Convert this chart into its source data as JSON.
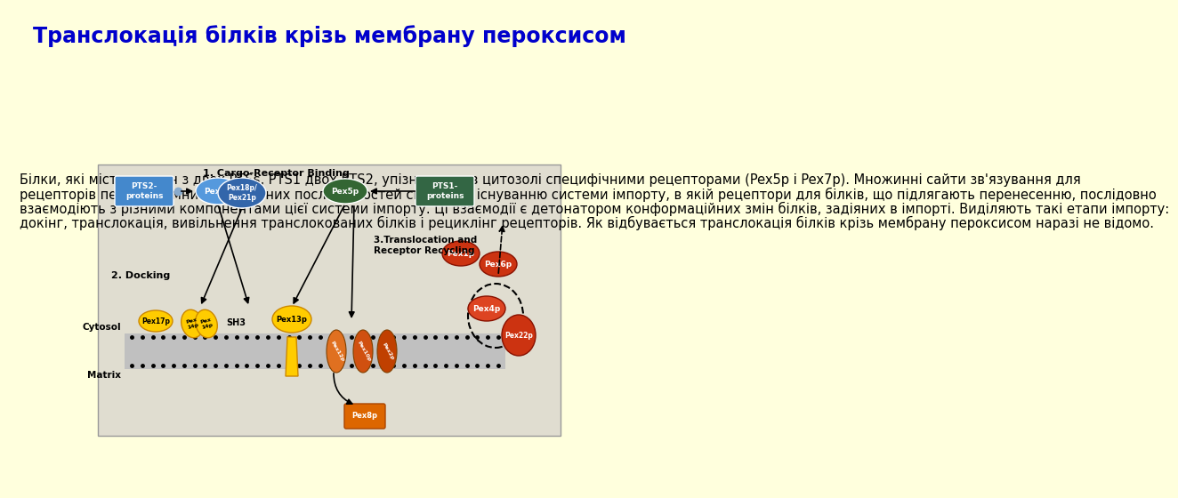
{
  "title": "Транслокація білків крізь мембрану пероксисом",
  "title_color": "#0000CC",
  "title_fontsize": 17,
  "background_color": "#FFFFDD",
  "body_text_lines": [
    "Білки, які містять один з двох PTSs, PTS1 двох PTS2, упізнаються в цитозолі специфічними рецепторами (Pex5p і Pex7p). Множинні сайти зв'язування для",
    "рецепторів пероксисомних сигнальних послідовностей сприяють існуванню системи імпорту, в якій рецептори для білків, що підлягають перенесенню, послідовно",
    "взаємодіють з різними компонентами цієї системи імпорту. Ці взаємодії є детонатором конформаційних змін білків, задіяних в імпорті. Виділяють такі етапи імпорту:",
    "докінг, транслокація, вивільнення транслокованих білків і рециклінг рецепторів. Як відбувається транслокація білків крізь мембрану пероксисом наразі не відомо."
  ],
  "body_fontsize": 10.5,
  "body_color": "#000000",
  "diagram_label_1": "1. Cargo-Receptor Binding",
  "diagram_label_2": "2. Docking",
  "diagram_label_3": "3.Translocation and\nReceptor Recycling",
  "cytosol_label": "Cytosol",
  "matrix_label": "Matrix"
}
